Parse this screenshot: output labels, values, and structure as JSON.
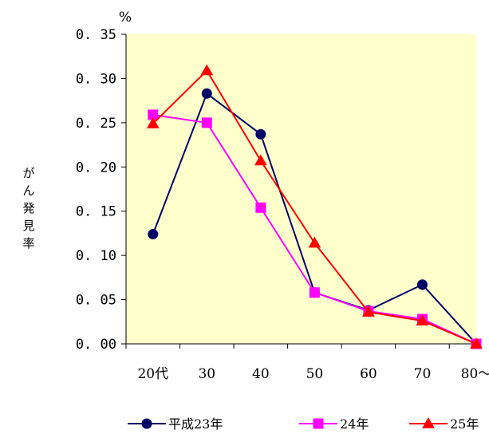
{
  "chart_data": {
    "type": "line",
    "unit": "%",
    "ylabel": "がん発見率",
    "categories": [
      "20代",
      "30",
      "40",
      "50",
      "60",
      "70",
      "80～"
    ],
    "ylim": [
      0,
      0.35
    ],
    "yticks": [
      0,
      0.05,
      0.1,
      0.15,
      0.2,
      0.25,
      0.3,
      0.35
    ],
    "ytick_labels": [
      "0. 00",
      "0. 05",
      "0. 10",
      "0. 15",
      "0. 20",
      "0. 25",
      "0. 30",
      "0. 35"
    ],
    "plot_background": "#ffffcc",
    "grid": false,
    "legend_position": "bottom",
    "series": [
      {
        "name": "平成23年",
        "color": "#000066",
        "marker": "circle",
        "values": [
          0.124,
          0.283,
          0.237,
          0.058,
          0.038,
          0.067,
          0.0
        ]
      },
      {
        "name": "24年",
        "color": "#ff00ff",
        "marker": "square",
        "values": [
          0.259,
          0.25,
          0.154,
          0.058,
          0.037,
          0.028,
          0.0
        ]
      },
      {
        "name": "25年",
        "color": "#ff0000",
        "marker": "triangle",
        "values": [
          0.249,
          0.309,
          0.207,
          0.114,
          0.036,
          0.026,
          0.0
        ]
      }
    ]
  }
}
